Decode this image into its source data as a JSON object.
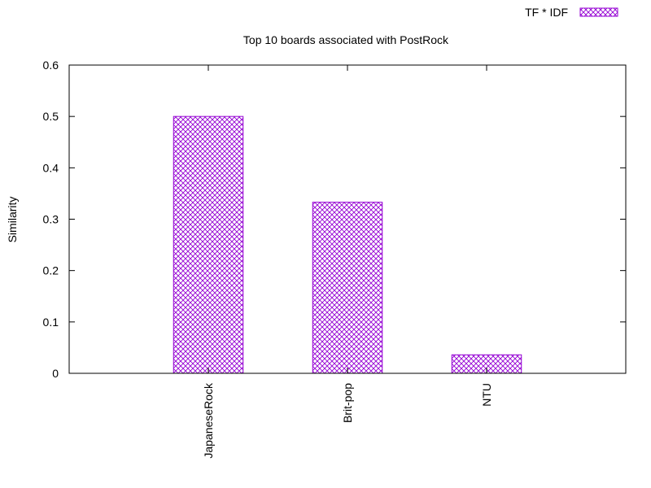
{
  "chart_data": {
    "type": "bar",
    "title": "Top 10 boards associated with PostRock",
    "xlabel": "",
    "ylabel": "Similarity",
    "categories": [
      "JapaneseRock",
      "Brit-pop",
      "NTU"
    ],
    "series": [
      {
        "name": "TF * IDF",
        "values": [
          0.5,
          0.333,
          0.036
        ]
      }
    ],
    "ylim": [
      0,
      0.6
    ],
    "yticks": [
      {
        "value": 0,
        "label": "0"
      },
      {
        "value": 0.1,
        "label": "0.1"
      },
      {
        "value": 0.2,
        "label": "0.2"
      },
      {
        "value": 0.3,
        "label": "0.3"
      },
      {
        "value": 0.4,
        "label": "0.4"
      },
      {
        "value": 0.5,
        "label": "0.5"
      },
      {
        "value": 0.6,
        "label": "0.6"
      }
    ],
    "grid": false,
    "legend_position": "top-right",
    "bar_pattern": "crosshatch",
    "bar_color": "#9400d3",
    "axis_color": "#000000"
  }
}
